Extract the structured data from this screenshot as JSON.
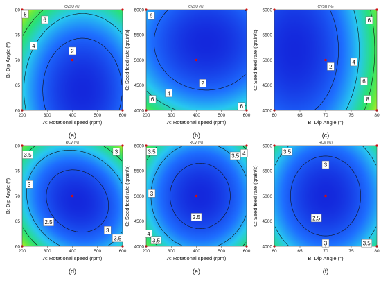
{
  "chart_data": [
    {
      "type": "heatmap",
      "title": "CVSU (%)",
      "panel_label": "(a)",
      "xlabel": "A: Rotational speed (rpm)",
      "ylabel": "B: Dip Angle (°)",
      "xlim": [
        200,
        600
      ],
      "ylim": [
        60,
        80
      ],
      "xticks": [
        "200",
        "300",
        "400",
        "500",
        "600"
      ],
      "yticks": [
        "60",
        "65",
        "70",
        "75",
        "80"
      ],
      "center_point": [
        400,
        70
      ],
      "levels": [
        2,
        4,
        6,
        8
      ],
      "contour_labels": [
        {
          "text": "2",
          "x": 400,
          "y": 71.8
        },
        {
          "text": "4",
          "x": 245,
          "y": 72.8
        },
        {
          "text": "6",
          "x": 290,
          "y": 78.0
        },
        {
          "text": "8",
          "x": 212,
          "y": 79.1
        }
      ],
      "surface": {
        "cx": 440,
        "cy": 64,
        "ax": 260,
        "ay": 17,
        "min": 0.3,
        "max": 9.5
      }
    },
    {
      "type": "heatmap",
      "title": "CVSU (%)",
      "panel_label": "(b)",
      "xlabel": "A: Rotational speed (rpm)",
      "ylabel": "C: Seed feed rate (grain/s)",
      "xlim": [
        200,
        600
      ],
      "ylim": [
        4000,
        6000
      ],
      "xticks": [
        "200",
        "300",
        "400",
        "500",
        "600"
      ],
      "yticks": [
        "4000",
        "4500",
        "5000",
        "5500",
        "6000"
      ],
      "center_point": [
        400,
        5000
      ],
      "levels": [
        2,
        4,
        6
      ],
      "contour_labels": [
        {
          "text": "6",
          "x": 220,
          "y": 5880
        },
        {
          "text": "2",
          "x": 425,
          "y": 4540
        },
        {
          "text": "4",
          "x": 290,
          "y": 4340
        },
        {
          "text": "6",
          "x": 225,
          "y": 4220
        },
        {
          "text": "6",
          "x": 580,
          "y": 4080
        }
      ],
      "surface": {
        "cx": 440,
        "cy": 5350,
        "ax": 330,
        "ay": 1500,
        "min": 0.5,
        "max": 8.0
      }
    },
    {
      "type": "heatmap",
      "title": "CVSU (%)",
      "panel_label": "(c)",
      "xlabel": "B: Dip Angle (°)",
      "ylabel": "C: Seed feed rate (grain/s)",
      "xlim": [
        60,
        80
      ],
      "ylim": [
        4000,
        6000
      ],
      "xticks": [
        "60",
        "65",
        "70",
        "75",
        "80"
      ],
      "yticks": [
        "4000",
        "4500",
        "5000",
        "5500",
        "6000"
      ],
      "center_point": [
        70,
        5000
      ],
      "levels": [
        2,
        4,
        6,
        8
      ],
      "contour_labels": [
        {
          "text": "2",
          "x": 71,
          "y": 4870
        },
        {
          "text": "4",
          "x": 75.5,
          "y": 4960
        },
        {
          "text": "6",
          "x": 78.5,
          "y": 5790
        },
        {
          "text": "6",
          "x": 77.5,
          "y": 4580
        },
        {
          "text": "8",
          "x": 78.2,
          "y": 4220
        }
      ],
      "surface": {
        "cx": 64,
        "cy": 5200,
        "ax": 14,
        "ay": 2200,
        "min": 0.3,
        "max": 9.5
      }
    },
    {
      "type": "heatmap",
      "title": "RCV (%)",
      "panel_label": "(d)",
      "xlabel": "A: Rotational speed (rpm)",
      "ylabel": "B: Dip Angle (°)",
      "xlim": [
        200,
        600
      ],
      "ylim": [
        60,
        80
      ],
      "xticks": [
        "200",
        "300",
        "400",
        "500",
        "600"
      ],
      "yticks": [
        "60",
        "65",
        "70",
        "75",
        "80"
      ],
      "center_point": [
        400,
        70
      ],
      "levels": [
        2.5,
        3,
        3.5
      ],
      "contour_labels": [
        {
          "text": "3.5",
          "x": 222,
          "y": 78.2
        },
        {
          "text": "3",
          "x": 575,
          "y": 78.8
        },
        {
          "text": "3",
          "x": 228,
          "y": 72.3
        },
        {
          "text": "2.5",
          "x": 305,
          "y": 64.8
        },
        {
          "text": "3",
          "x": 540,
          "y": 63.2
        },
        {
          "text": "3.5",
          "x": 580,
          "y": 61.6
        }
      ],
      "surface": {
        "cx": 420,
        "cy": 69,
        "ax": 240,
        "ay": 12,
        "min": 2.2,
        "max": 4.5,
        "tilt": 0.6
      }
    },
    {
      "type": "heatmap",
      "title": "RCV (%)",
      "panel_label": "(e)",
      "xlabel": "A: Rotational speed (rpm)",
      "ylabel": "C: Seed feed rate (grain/s)",
      "xlim": [
        200,
        600
      ],
      "ylim": [
        4000,
        6000
      ],
      "xticks": [
        "200",
        "300",
        "400",
        "500",
        "600"
      ],
      "yticks": [
        "4000",
        "4500",
        "5000",
        "5500",
        "6000"
      ],
      "center_point": [
        400,
        5000
      ],
      "levels": [
        2.5,
        3,
        3.5,
        4
      ],
      "contour_labels": [
        {
          "text": "3.5",
          "x": 222,
          "y": 5880
        },
        {
          "text": "3.5",
          "x": 555,
          "y": 5800
        },
        {
          "text": "4",
          "x": 590,
          "y": 5850
        },
        {
          "text": "3",
          "x": 222,
          "y": 5050
        },
        {
          "text": "2.5",
          "x": 400,
          "y": 4580
        },
        {
          "text": "4",
          "x": 210,
          "y": 4250
        },
        {
          "text": "3.5",
          "x": 240,
          "y": 4120
        }
      ],
      "surface": {
        "cx": 415,
        "cy": 5000,
        "ax": 240,
        "ay": 1300,
        "min": 2.2,
        "max": 4.6
      }
    },
    {
      "type": "heatmap",
      "title": "RCV (%)",
      "panel_label": "(f)",
      "xlabel": "B: Dip Angle (°)",
      "ylabel": "C: Seed feed rate (grain/s)",
      "xlim": [
        60,
        80
      ],
      "ylim": [
        4000,
        6000
      ],
      "xticks": [
        "60",
        "65",
        "70",
        "75",
        "80"
      ],
      "yticks": [
        "4000",
        "4500",
        "5000",
        "5500",
        "6000"
      ],
      "center_point": [
        70,
        5000
      ],
      "levels": [
        2.5,
        3,
        3.5
      ],
      "contour_labels": [
        {
          "text": "3.5",
          "x": 62.5,
          "y": 5880
        },
        {
          "text": "3",
          "x": 70,
          "y": 5620
        },
        {
          "text": "2.5",
          "x": 68.2,
          "y": 4560
        },
        {
          "text": "3",
          "x": 70,
          "y": 4060
        },
        {
          "text": "3.5",
          "x": 78,
          "y": 4060
        }
      ],
      "surface": {
        "cx": 70,
        "cy": 5000,
        "ax": 12.5,
        "ay": 1450,
        "min": 2.2,
        "max": 4.2
      }
    }
  ]
}
